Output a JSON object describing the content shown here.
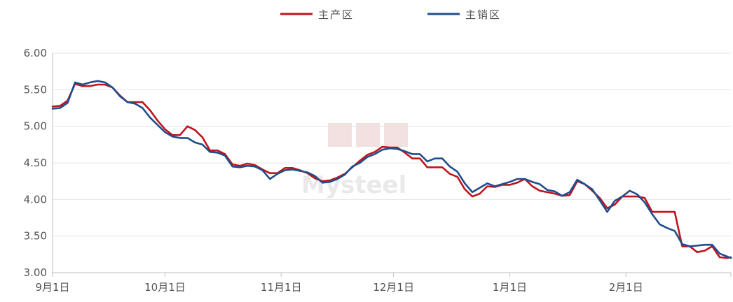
{
  "chart_data": {
    "type": "line",
    "title": "",
    "xlabel": "",
    "ylabel": "",
    "ylim": [
      3.0,
      6.0
    ],
    "yticks": [
      "3.00",
      "3.50",
      "4.00",
      "4.50",
      "5.00",
      "5.50",
      "6.00"
    ],
    "xlim": [
      "9-01",
      "3-01"
    ],
    "x_tick_labels": [
      "9月1日",
      "10月1日",
      "11月1日",
      "12月1日",
      "1月1日",
      "2月1日"
    ],
    "x_tick_dates": [
      "9-01",
      "10-01",
      "11-01",
      "12-01",
      "1-01",
      "2-01"
    ],
    "grid": "horizontal",
    "legend_position": "top-center",
    "watermark": "Mysteel",
    "colors": {
      "main_production": "#c0141c",
      "main_sales": "#1f4e8c",
      "axis": "#bfbfbf",
      "text": "#555555"
    },
    "series": [
      {
        "name": "主产区",
        "color": "#c0141c",
        "points": [
          [
            "9-01",
            5.27
          ],
          [
            "9-03",
            5.28
          ],
          [
            "9-05",
            5.35
          ],
          [
            "9-07",
            5.58
          ],
          [
            "9-09",
            5.55
          ],
          [
            "9-11",
            5.55
          ],
          [
            "9-13",
            5.57
          ],
          [
            "9-15",
            5.57
          ],
          [
            "9-17",
            5.53
          ],
          [
            "9-19",
            5.42
          ],
          [
            "9-21",
            5.33
          ],
          [
            "9-23",
            5.33
          ],
          [
            "9-25",
            5.33
          ],
          [
            "9-27",
            5.22
          ],
          [
            "9-29",
            5.08
          ],
          [
            "10-01",
            4.96
          ],
          [
            "10-03",
            4.88
          ],
          [
            "10-05",
            4.88
          ],
          [
            "10-07",
            5.0
          ],
          [
            "10-09",
            4.95
          ],
          [
            "10-11",
            4.85
          ],
          [
            "10-13",
            4.67
          ],
          [
            "10-15",
            4.67
          ],
          [
            "10-17",
            4.62
          ],
          [
            "10-19",
            4.48
          ],
          [
            "10-21",
            4.46
          ],
          [
            "10-23",
            4.49
          ],
          [
            "10-25",
            4.47
          ],
          [
            "10-27",
            4.41
          ],
          [
            "10-29",
            4.36
          ],
          [
            "10-31",
            4.36
          ],
          [
            "11-02",
            4.43
          ],
          [
            "11-04",
            4.43
          ],
          [
            "11-06",
            4.4
          ],
          [
            "11-08",
            4.36
          ],
          [
            "11-10",
            4.29
          ],
          [
            "11-12",
            4.25
          ],
          [
            "11-14",
            4.26
          ],
          [
            "11-16",
            4.3
          ],
          [
            "11-18",
            4.35
          ],
          [
            "11-20",
            4.44
          ],
          [
            "11-22",
            4.53
          ],
          [
            "11-24",
            4.61
          ],
          [
            "11-26",
            4.65
          ],
          [
            "11-28",
            4.72
          ],
          [
            "11-30",
            4.71
          ],
          [
            "12-02",
            4.71
          ],
          [
            "12-04",
            4.64
          ],
          [
            "12-06",
            4.56
          ],
          [
            "12-08",
            4.56
          ],
          [
            "12-10",
            4.44
          ],
          [
            "12-12",
            4.44
          ],
          [
            "12-14",
            4.44
          ],
          [
            "12-16",
            4.35
          ],
          [
            "12-18",
            4.31
          ],
          [
            "12-20",
            4.14
          ],
          [
            "12-22",
            4.04
          ],
          [
            "12-24",
            4.08
          ],
          [
            "12-26",
            4.18
          ],
          [
            "12-28",
            4.17
          ],
          [
            "12-30",
            4.2
          ],
          [
            "1-01",
            4.2
          ],
          [
            "1-03",
            4.23
          ],
          [
            "1-05",
            4.28
          ],
          [
            "1-07",
            4.18
          ],
          [
            "1-09",
            4.12
          ],
          [
            "1-11",
            4.1
          ],
          [
            "1-13",
            4.08
          ],
          [
            "1-15",
            4.05
          ],
          [
            "1-17",
            4.06
          ],
          [
            "1-19",
            4.25
          ],
          [
            "1-21",
            4.21
          ],
          [
            "1-23",
            4.12
          ],
          [
            "1-25",
            4.02
          ],
          [
            "1-27",
            3.88
          ],
          [
            "1-29",
            3.93
          ],
          [
            "1-31",
            4.04
          ],
          [
            "2-02",
            4.04
          ],
          [
            "2-04",
            4.04
          ],
          [
            "2-06",
            4.02
          ],
          [
            "2-08",
            3.83
          ],
          [
            "2-10",
            3.83
          ],
          [
            "2-12",
            3.83
          ],
          [
            "2-14",
            3.83
          ],
          [
            "2-16",
            3.36
          ],
          [
            "2-18",
            3.36
          ],
          [
            "2-20",
            3.28
          ],
          [
            "2-22",
            3.3
          ],
          [
            "2-24",
            3.36
          ],
          [
            "2-26",
            3.21
          ],
          [
            "2-28",
            3.2
          ],
          [
            "3-01",
            3.21
          ]
        ]
      },
      {
        "name": "主销区",
        "color": "#1f4e8c",
        "points": [
          [
            "9-01",
            5.24
          ],
          [
            "9-03",
            5.25
          ],
          [
            "9-05",
            5.32
          ],
          [
            "9-07",
            5.6
          ],
          [
            "9-09",
            5.57
          ],
          [
            "9-11",
            5.6
          ],
          [
            "9-13",
            5.62
          ],
          [
            "9-15",
            5.6
          ],
          [
            "9-17",
            5.53
          ],
          [
            "9-19",
            5.41
          ],
          [
            "9-21",
            5.33
          ],
          [
            "9-23",
            5.31
          ],
          [
            "9-25",
            5.25
          ],
          [
            "9-27",
            5.12
          ],
          [
            "9-29",
            5.02
          ],
          [
            "10-01",
            4.92
          ],
          [
            "10-03",
            4.86
          ],
          [
            "10-05",
            4.84
          ],
          [
            "10-07",
            4.84
          ],
          [
            "10-09",
            4.78
          ],
          [
            "10-11",
            4.75
          ],
          [
            "10-13",
            4.65
          ],
          [
            "10-15",
            4.64
          ],
          [
            "10-17",
            4.6
          ],
          [
            "10-19",
            4.45
          ],
          [
            "10-21",
            4.44
          ],
          [
            "10-23",
            4.46
          ],
          [
            "10-25",
            4.45
          ],
          [
            "10-27",
            4.4
          ],
          [
            "10-29",
            4.28
          ],
          [
            "10-31",
            4.35
          ],
          [
            "11-02",
            4.4
          ],
          [
            "11-04",
            4.41
          ],
          [
            "11-06",
            4.39
          ],
          [
            "11-08",
            4.37
          ],
          [
            "11-10",
            4.32
          ],
          [
            "11-12",
            4.23
          ],
          [
            "11-14",
            4.24
          ],
          [
            "11-16",
            4.28
          ],
          [
            "11-18",
            4.34
          ],
          [
            "11-20",
            4.45
          ],
          [
            "11-22",
            4.5
          ],
          [
            "11-24",
            4.58
          ],
          [
            "11-26",
            4.62
          ],
          [
            "11-28",
            4.68
          ],
          [
            "11-30",
            4.7
          ],
          [
            "12-02",
            4.69
          ],
          [
            "12-04",
            4.66
          ],
          [
            "12-06",
            4.62
          ],
          [
            "12-08",
            4.62
          ],
          [
            "12-10",
            4.52
          ],
          [
            "12-12",
            4.56
          ],
          [
            "12-14",
            4.56
          ],
          [
            "12-16",
            4.45
          ],
          [
            "12-18",
            4.38
          ],
          [
            "12-20",
            4.22
          ],
          [
            "12-22",
            4.1
          ],
          [
            "12-24",
            4.16
          ],
          [
            "12-26",
            4.22
          ],
          [
            "12-28",
            4.18
          ],
          [
            "12-30",
            4.21
          ],
          [
            "1-01",
            4.24
          ],
          [
            "1-03",
            4.28
          ],
          [
            "1-05",
            4.28
          ],
          [
            "1-07",
            4.24
          ],
          [
            "1-09",
            4.21
          ],
          [
            "1-11",
            4.13
          ],
          [
            "1-13",
            4.11
          ],
          [
            "1-15",
            4.05
          ],
          [
            "1-17",
            4.1
          ],
          [
            "1-19",
            4.27
          ],
          [
            "1-21",
            4.21
          ],
          [
            "1-23",
            4.14
          ],
          [
            "1-25",
            3.99
          ],
          [
            "1-27",
            3.83
          ],
          [
            "1-29",
            3.98
          ],
          [
            "1-31",
            4.04
          ],
          [
            "2-02",
            4.12
          ],
          [
            "2-04",
            4.07
          ],
          [
            "2-06",
            3.96
          ],
          [
            "2-08",
            3.8
          ],
          [
            "2-10",
            3.66
          ],
          [
            "2-12",
            3.61
          ],
          [
            "2-14",
            3.57
          ],
          [
            "2-16",
            3.39
          ],
          [
            "2-18",
            3.36
          ],
          [
            "2-20",
            3.37
          ],
          [
            "2-22",
            3.38
          ],
          [
            "2-24",
            3.38
          ],
          [
            "2-26",
            3.26
          ],
          [
            "2-28",
            3.22
          ],
          [
            "3-01",
            3.2
          ]
        ]
      }
    ]
  }
}
